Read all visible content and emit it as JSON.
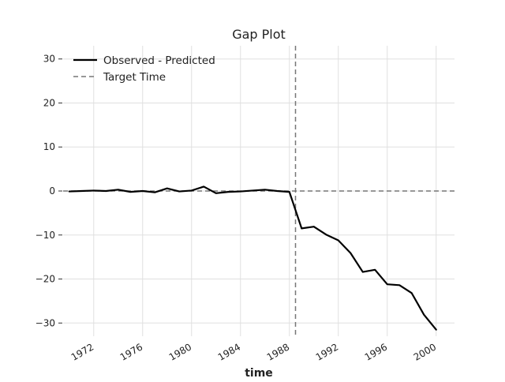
{
  "chart_data": {
    "type": "line",
    "title": "Gap Plot",
    "xlabel": "time",
    "ylabel": "",
    "xlim": [
      1969.5,
      2001.5
    ],
    "ylim": [
      -33,
      33
    ],
    "x_ticks": [
      1972,
      1976,
      1980,
      1984,
      1988,
      1992,
      1996,
      2000
    ],
    "x_tick_labels": [
      "1972",
      "1976",
      "1980",
      "1984",
      "1988",
      "1992",
      "1996",
      "2000"
    ],
    "y_ticks": [
      30,
      20,
      10,
      0,
      -10,
      -20,
      -30
    ],
    "y_tick_labels": [
      "30",
      "20",
      "10",
      "0",
      "−10",
      "−20",
      "−30"
    ],
    "grid": true,
    "legend_position": "top-left",
    "series": [
      {
        "name": "Observed - Predicted",
        "color": "#000000",
        "style": "solid",
        "x": [
          1970,
          1971,
          1972,
          1973,
          1974,
          1975,
          1976,
          1977,
          1978,
          1979,
          1980,
          1981,
          1982,
          1983,
          1984,
          1985,
          1986,
          1987,
          1988,
          1989,
          1990,
          1991,
          1992,
          1993,
          1994,
          1995,
          1996,
          1997,
          1998,
          1999,
          2000
        ],
        "y": [
          -0.1,
          0.0,
          0.1,
          0.0,
          0.3,
          -0.2,
          0.0,
          -0.3,
          0.6,
          -0.1,
          0.1,
          1.0,
          -0.5,
          -0.2,
          -0.1,
          0.1,
          0.3,
          0.0,
          -0.2,
          -8.5,
          -8.1,
          -9.9,
          -11.2,
          -14.1,
          -18.4,
          -17.9,
          -21.2,
          -21.4,
          -23.2,
          -28.1,
          -31.5
        ]
      }
    ],
    "reference_lines": [
      {
        "name": "Target Time",
        "orientation": "vertical",
        "value": 1988.5,
        "color": "#777777",
        "style": "dashed"
      },
      {
        "orientation": "horizontal",
        "value": 0,
        "color": "#777777",
        "style": "dashed"
      }
    ]
  }
}
